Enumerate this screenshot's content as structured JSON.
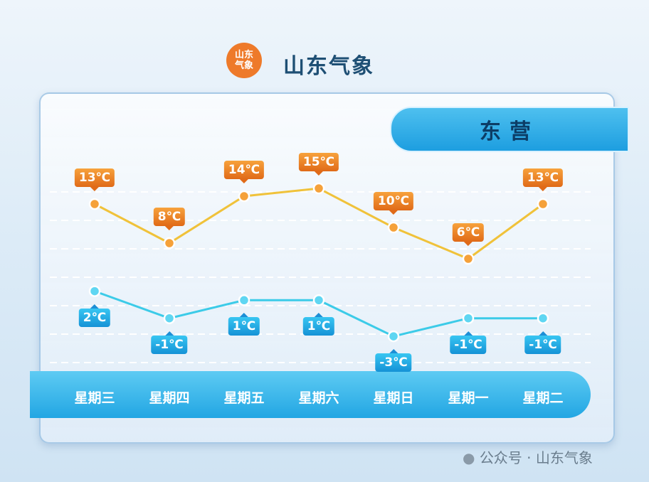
{
  "header": {
    "logo_text": "山东气象",
    "brand": "山东气象"
  },
  "city": "东营",
  "watermark": "公众号 · 山东气象",
  "colors": {
    "high": "#f0c23a",
    "low": "#3ccbe8"
  },
  "chart_data": {
    "type": "line",
    "title": "东营",
    "categories": [
      "星期三",
      "星期四",
      "星期五",
      "星期六",
      "星期日",
      "星期一",
      "星期二"
    ],
    "series": [
      {
        "name": "high",
        "values": [
          13,
          8,
          14,
          15,
          10,
          6,
          13
        ],
        "labels": [
          "13℃",
          "8℃",
          "14℃",
          "15℃",
          "10℃",
          "6℃",
          "13℃"
        ]
      },
      {
        "name": "low",
        "values": [
          2,
          -1,
          1,
          1,
          -3,
          -1,
          -1
        ],
        "labels": [
          "2℃",
          "-1℃",
          "1℃",
          "1℃",
          "-3℃",
          "-1℃",
          "-1℃"
        ]
      }
    ],
    "grid": true
  }
}
